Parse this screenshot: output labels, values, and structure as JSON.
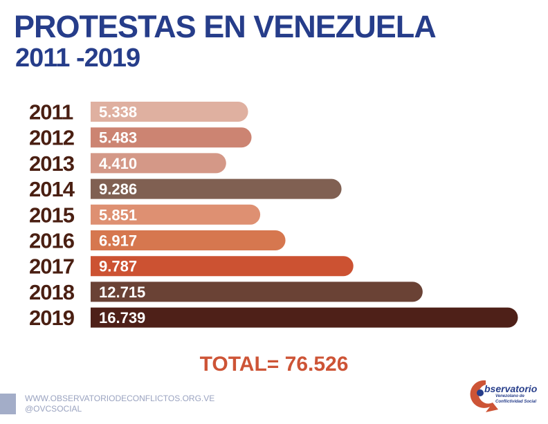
{
  "header": {
    "title": "PROTESTAS EN VENEZUELA",
    "subtitle": "2011 -2019"
  },
  "chart_data": {
    "type": "bar",
    "orientation": "horizontal",
    "title": "PROTESTAS EN VENEZUELA 2011 -2019",
    "categories": [
      "2011",
      "2012",
      "2013",
      "2014",
      "2015",
      "2016",
      "2017",
      "2018",
      "2019"
    ],
    "values": [
      5338,
      5483,
      4410,
      9286,
      5851,
      6917,
      9787,
      12715,
      16739
    ],
    "value_labels": [
      "5.338",
      "5.483",
      "4.410",
      "9.286",
      "5.851",
      "6.917",
      "9.787",
      "12.715",
      "16.739"
    ],
    "colors": [
      "#dfb0a0",
      "#cc8472",
      "#d49887",
      "#806052",
      "#de9072",
      "#d6774f",
      "#cc5232",
      "#6a4235",
      "#4e2018"
    ],
    "xlabel": "",
    "ylabel": ""
  },
  "total": {
    "label": "TOTAL=",
    "value": "76.526"
  },
  "footer": {
    "website": "WWW.OBSERVATORIODECONFLICTOS.ORG.VE",
    "handle": "@OVCSOCIAL"
  },
  "logo": {
    "title": "bservatorio",
    "line1": "Venezolano de",
    "line2": "Conflictividad Social"
  }
}
